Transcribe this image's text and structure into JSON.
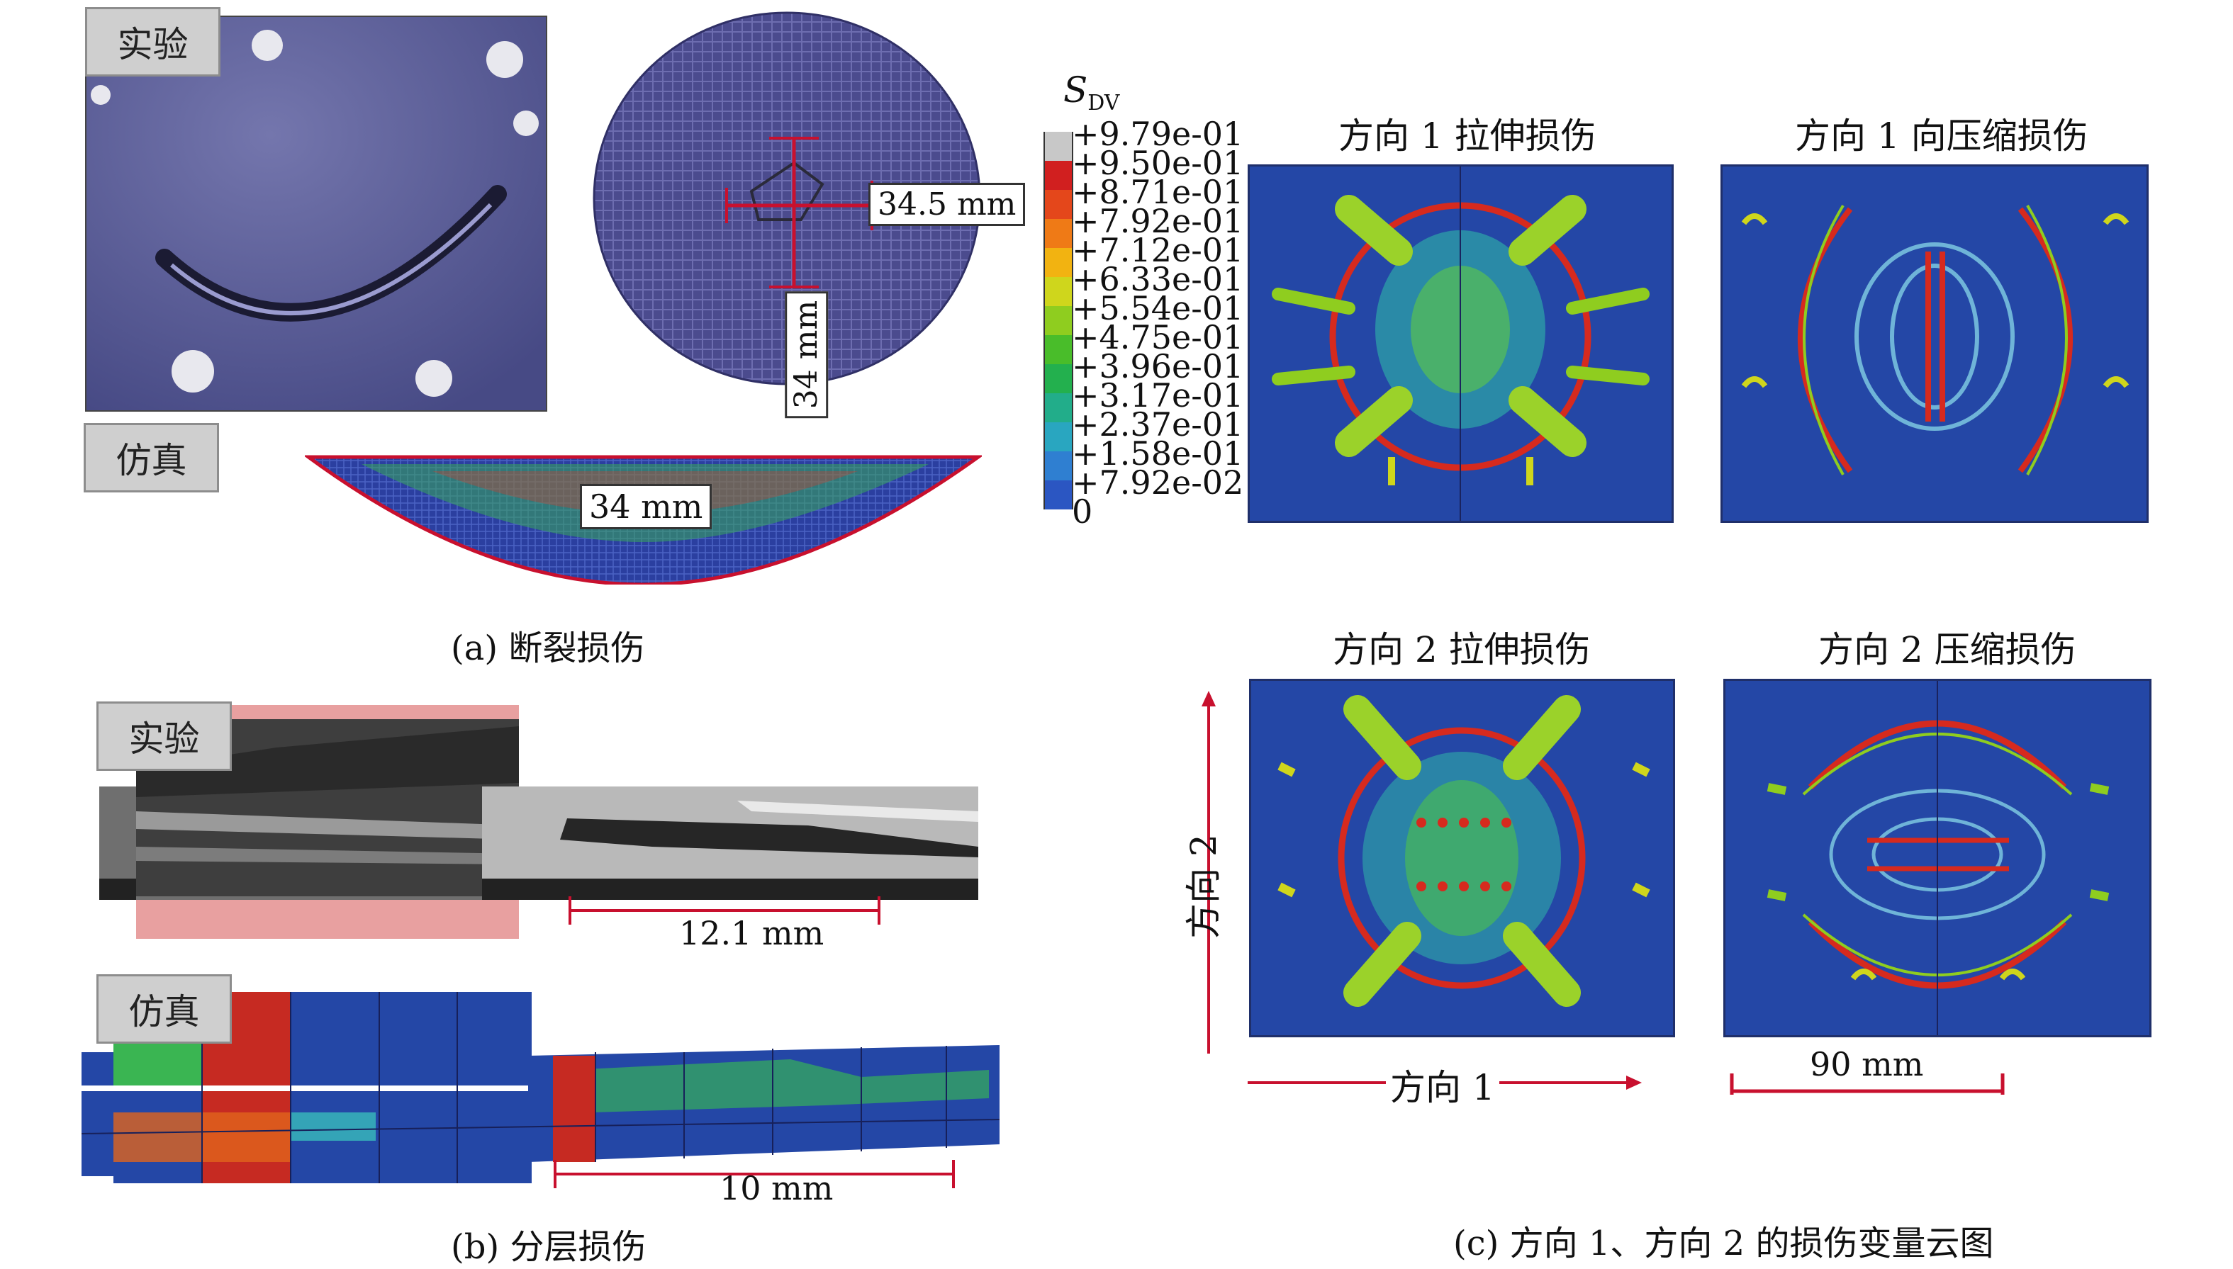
{
  "panel_a": {
    "tag_experiment": "实验",
    "tag_simulation": "仿真",
    "dim_horizontal": "34.5 mm",
    "dim_vertical": "34 mm",
    "dim_sim": "34 mm",
    "caption": "(a) 断裂损伤"
  },
  "panel_b": {
    "tag_experiment": "实验",
    "tag_simulation": "仿真",
    "dim_experiment": "12.1 mm",
    "dim_simulation": "10 mm",
    "caption": "(b) 分层损伤"
  },
  "panel_c": {
    "legend_title_main": "S",
    "legend_title_sub": "DV",
    "legend_values": [
      "+9.79e-01",
      "+9.50e-01",
      "+8.71e-01",
      "+7.92e-01",
      "+7.12e-01",
      "+6.33e-01",
      "+5.54e-01",
      "+4.75e-01",
      "+3.96e-01",
      "+3.17e-01",
      "+2.37e-01",
      "+1.58e-01",
      "+7.92e-02",
      "0"
    ],
    "legend_colors": [
      "#c8c8c8",
      "#d11f1f",
      "#e4471b",
      "#ef7a16",
      "#f2b311",
      "#cfd61c",
      "#8fcd1f",
      "#49bd2a",
      "#23b04e",
      "#22ad8a",
      "#29a6c0",
      "#2f7fd1",
      "#2b56c2"
    ],
    "title_1_tension": "方向 1 拉伸损伤",
    "title_1_compression": "方向 1 向压缩损伤",
    "title_2_tension": "方向 2 拉伸损伤",
    "title_2_compression": "方向 2 压缩损伤",
    "axis_direction_1": "方向 1",
    "axis_direction_2": "方向 2",
    "scale_label": "90 mm",
    "caption": "(c) 方向 1、方向 2 的损伤变量云图"
  },
  "colors": {
    "accent_red": "#c8102e",
    "panel_blue": "#2447a6"
  }
}
